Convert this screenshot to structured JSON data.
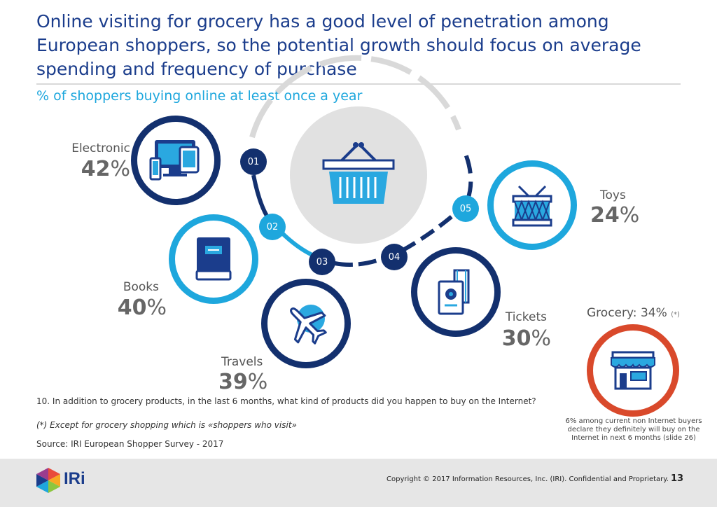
{
  "slide": {
    "title": "Online visiting for grocery has a good level of penetration among European shoppers, so the potential growth should focus on average spending and frequency of purchase",
    "subtitle": "% of shoppers buying online at least once a year"
  },
  "categories": [
    {
      "number": "01",
      "label": "Electronic",
      "value": "42",
      "unit": "%"
    },
    {
      "number": "02",
      "label": "Books",
      "value": "40",
      "unit": "%"
    },
    {
      "number": "03",
      "label": "Travels",
      "value": "39",
      "unit": "%"
    },
    {
      "number": "04",
      "label": "Tickets",
      "value": "30",
      "unit": "%"
    },
    {
      "number": "05",
      "label": "Toys",
      "value": "24",
      "unit": "%"
    }
  ],
  "grocery": {
    "label": "Grocery: 34%",
    "footnote_marker": "(*)",
    "note": "6% among current non Internet buyers declare  they definitely will buy on the Internet in next 6 months (slide 26)"
  },
  "footnotes": {
    "question": "10. In addition to grocery products, in the last 6 months, what kind of products did you happen to buy on the Internet?",
    "exception": "(*) Except for grocery shopping which is «shoppers who visit»",
    "source": "Source: IRI European Shopper Survey - 2017"
  },
  "footer": {
    "brand": "IRi",
    "copyright": "Copyright © 2017 Information Resources, Inc. (IRI). Confidential and Proprietary.",
    "page_number": "13"
  },
  "colors": {
    "navy": "#1b3d8c",
    "dark_navy": "#13306e",
    "light_blue": "#1ea7dd",
    "grocery_red": "#d9492b",
    "gray": "#d9d9d9"
  }
}
